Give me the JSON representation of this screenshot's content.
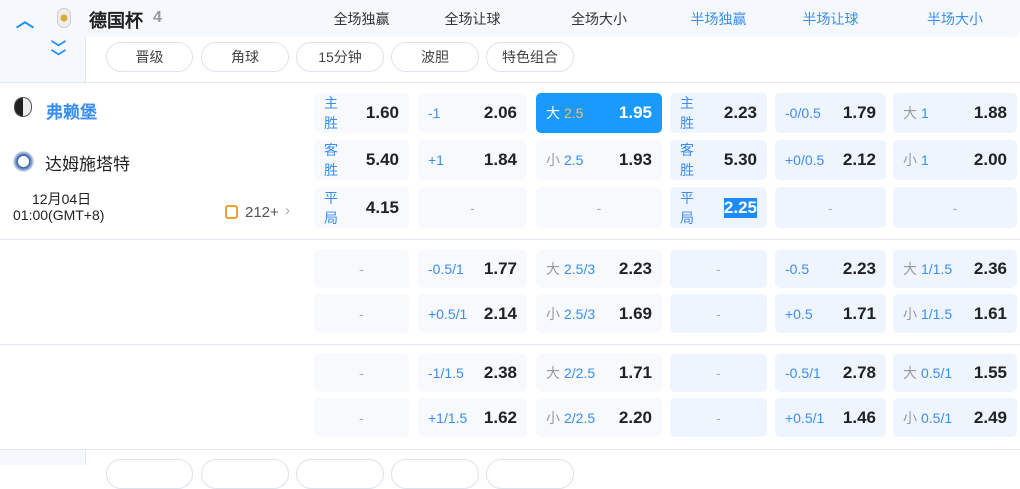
{
  "league": {
    "name": "德国杯",
    "count": "4"
  },
  "columns": [
    "全场独赢",
    "全场让球",
    "全场大小",
    "半场独赢",
    "半场让球",
    "半场大小"
  ],
  "filters": [
    "晋级",
    "角球",
    "15分钟",
    "波胆",
    "特色组合"
  ],
  "match": {
    "home": "弗赖堡",
    "away": "达姆施塔特",
    "date": "12月04日",
    "time": "01:00(GMT+8)",
    "more_bets": "212+"
  },
  "colors": {
    "accent": "#1a9aff",
    "label": "#3a8ef0",
    "line_highlight": "#f5c060"
  },
  "blocks": [
    {
      "rows": [
        [
          {
            "lbl": "主胜",
            "odds": "1.60"
          },
          {
            "line": "-1",
            "odds": "2.06"
          },
          {
            "pre": "大",
            "line": "2.5",
            "odds": "1.95",
            "selected": true
          },
          {
            "lbl": "主胜",
            "odds": "2.23"
          },
          {
            "line": "-0/0.5",
            "odds": "1.79"
          },
          {
            "pre": "大",
            "line": "1",
            "odds": "1.88"
          }
        ],
        [
          {
            "lbl": "客胜",
            "odds": "5.40"
          },
          {
            "line": "+1",
            "odds": "1.84"
          },
          {
            "pre": "小",
            "line": "2.5",
            "odds": "1.93"
          },
          {
            "lbl": "客胜",
            "odds": "5.30"
          },
          {
            "line": "+0/0.5",
            "odds": "2.12"
          },
          {
            "pre": "小",
            "line": "1",
            "odds": "2.00"
          }
        ],
        [
          {
            "lbl": "平局",
            "odds": "4.15"
          },
          {
            "dash": "-"
          },
          {
            "dash": "-"
          },
          {
            "lbl": "平局",
            "odds": "2.25",
            "text_selected": true
          },
          {
            "dash": "-"
          },
          {
            "dash": "-"
          }
        ]
      ]
    },
    {
      "rows": [
        [
          {
            "dash": "-"
          },
          {
            "line": "-0.5/1",
            "odds": "1.77"
          },
          {
            "pre": "大",
            "line": "2.5/3",
            "odds": "2.23"
          },
          {
            "dash": "-"
          },
          {
            "line": "-0.5",
            "odds": "2.23"
          },
          {
            "pre": "大",
            "line": "1/1.5",
            "odds": "2.36"
          }
        ],
        [
          {
            "dash": "-"
          },
          {
            "line": "+0.5/1",
            "odds": "2.14"
          },
          {
            "pre": "小",
            "line": "2.5/3",
            "odds": "1.69"
          },
          {
            "dash": "-"
          },
          {
            "line": "+0.5",
            "odds": "1.71"
          },
          {
            "pre": "小",
            "line": "1/1.5",
            "odds": "1.61"
          }
        ]
      ]
    },
    {
      "rows": [
        [
          {
            "dash": "-"
          },
          {
            "line": "-1/1.5",
            "odds": "2.38"
          },
          {
            "pre": "大",
            "line": "2/2.5",
            "odds": "1.71"
          },
          {
            "dash": "-"
          },
          {
            "line": "-0.5/1",
            "odds": "2.78"
          },
          {
            "pre": "大",
            "line": "0.5/1",
            "odds": "1.55"
          }
        ],
        [
          {
            "dash": "-"
          },
          {
            "line": "+1/1.5",
            "odds": "1.62"
          },
          {
            "pre": "小",
            "line": "2/2.5",
            "odds": "2.20"
          },
          {
            "dash": "-"
          },
          {
            "line": "+0.5/1",
            "odds": "1.46"
          },
          {
            "pre": "小",
            "line": "0.5/1",
            "odds": "2.49"
          }
        ]
      ]
    }
  ]
}
